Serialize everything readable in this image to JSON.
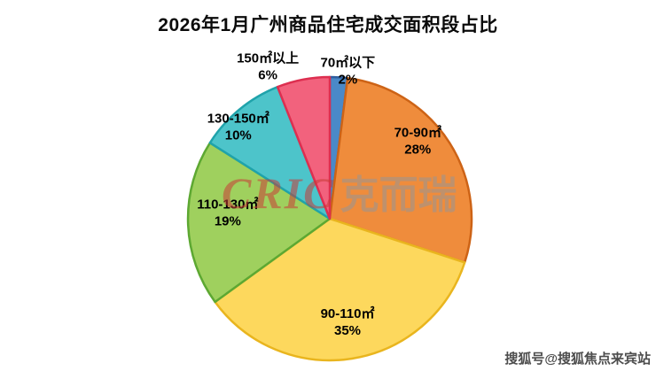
{
  "title": "2026年1月广州商品住宅成交面积段占比",
  "watermarks": {
    "logo_latin": "CRIC",
    "logo_cn": "克而瑞",
    "bottom_right": "搜狐号@搜狐焦点来宾站"
  },
  "chart_data": {
    "type": "pie",
    "title": "2026年1月广州商品住宅成交面积段占比",
    "unit": "%",
    "start_angle_deg": -90,
    "direction": "clockwise",
    "legend": "none",
    "slices": [
      {
        "label": "70㎡以下",
        "value": 2,
        "color": "#4a89c8",
        "stroke": "#2f5f9f"
      },
      {
        "label": "70-90㎡",
        "value": 28,
        "color": "#ef8c3c",
        "stroke": "#cd6316"
      },
      {
        "label": "90-110㎡",
        "value": 35,
        "color": "#fdd85d",
        "stroke": "#e9b51e"
      },
      {
        "label": "110-130㎡",
        "value": 19,
        "color": "#9fd05e",
        "stroke": "#5da832"
      },
      {
        "label": "130-150㎡",
        "value": 10,
        "color": "#4dc4ca",
        "stroke": "#1fa3ab"
      },
      {
        "label": "150㎡以上",
        "value": 6,
        "color": "#f2627d",
        "stroke": "#dd2f50"
      }
    ]
  }
}
